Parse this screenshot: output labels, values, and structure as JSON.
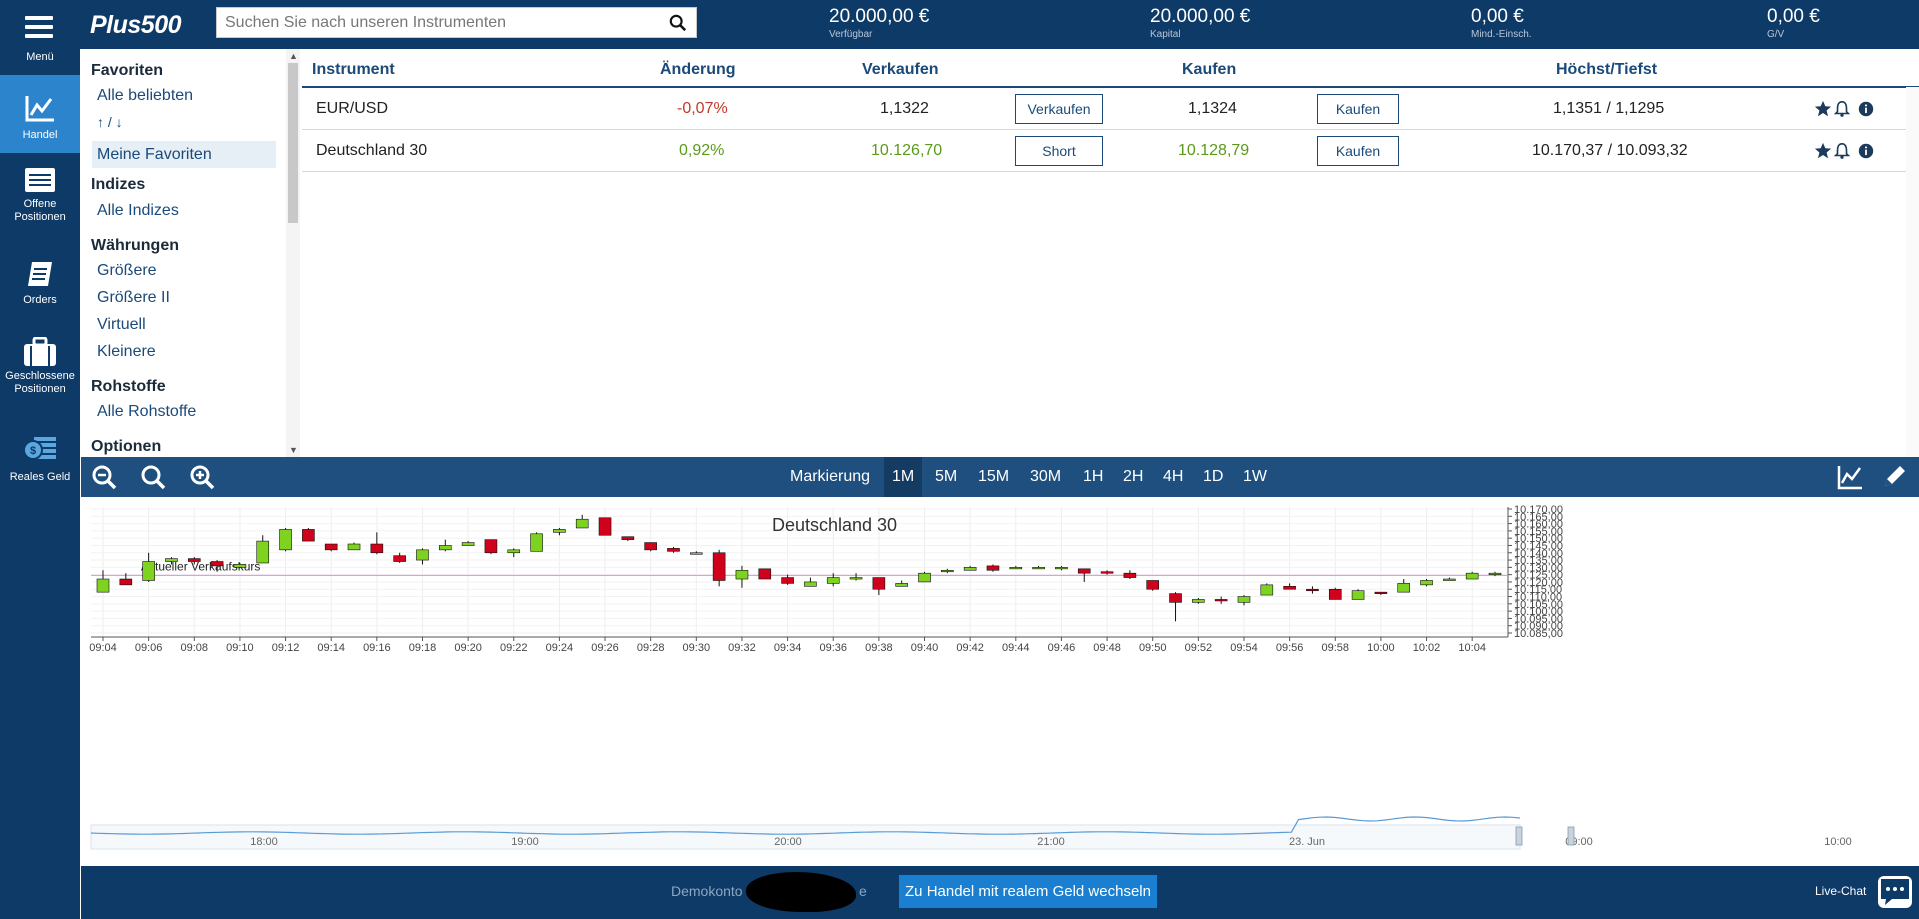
{
  "brand": {
    "logo": "Plus500"
  },
  "menu_label": "Menü",
  "search": {
    "placeholder": "Suchen Sie nach unseren Instrumenten"
  },
  "stats": [
    {
      "value": "20.000,00 €",
      "label": "Verfügbar"
    },
    {
      "value": "20.000,00 €",
      "label": "Kapital"
    },
    {
      "value": "0,00 €",
      "label": "Mind.-Einsch."
    },
    {
      "value": "0,00 €",
      "label": "G/V"
    }
  ],
  "nav": [
    {
      "label1": "Handel",
      "label2": "",
      "icon": "trade-chart-icon",
      "active": true
    },
    {
      "label1": "Offene",
      "label2": "Positionen",
      "icon": "open-positions-icon"
    },
    {
      "label1": "Orders",
      "label2": "",
      "icon": "orders-icon"
    },
    {
      "label1": "Geschlossene",
      "label2": "Positionen",
      "icon": "briefcase-icon"
    },
    {
      "label1": "Reales Geld",
      "label2": "",
      "icon": "money-icon"
    }
  ],
  "categories": {
    "favoriten": "Favoriten",
    "alle_beliebten": "Alle beliebten",
    "up_down": "↑ / ↓",
    "meine_favoriten": "Meine Favoriten",
    "indizes": "Indizes",
    "alle_indizes": "Alle Indizes",
    "waehrungen": "Währungen",
    "groessere": "Größere",
    "groessere2": "Größere II",
    "virtuell": "Virtuell",
    "kleinere": "Kleinere",
    "rohstoffe": "Rohstoffe",
    "alle_rohstoffe": "Alle Rohstoffe",
    "optionen": "Optionen"
  },
  "table": {
    "headers": {
      "instrument": "Instrument",
      "change": "Änderung",
      "sell": "Verkaufen",
      "buy": "Kaufen",
      "highlow": "Höchst/Tiefst"
    },
    "rows": [
      {
        "name": "EUR/USD",
        "change": "-0,07%",
        "sell": "1,1322",
        "sell_btn": "Verkaufen",
        "buy": "1,1324",
        "buy_btn": "Kaufen",
        "highlow": "1,1351 / 1,1295"
      },
      {
        "name": "Deutschland 30",
        "change": "0,92%",
        "sell": "10.126,70",
        "sell_btn": "Short",
        "buy": "10.128,79",
        "buy_btn": "Kaufen",
        "highlow": "10.170,37 / 10.093,32"
      }
    ]
  },
  "chart_toolbar": {
    "markierung": "Markierung",
    "timeframes": [
      "1M",
      "5M",
      "15M",
      "30M",
      "1H",
      "2H",
      "4H",
      "1D",
      "1W"
    ],
    "selected": "1M"
  },
  "chart_data": {
    "type": "candlestick",
    "title": "Deutschland 30",
    "price_line_label": "Aktueller Verkaufskurs",
    "price_line": 10124.5,
    "ylim": [
      10085,
      10170
    ],
    "yticks": [
      "10.085,00",
      "10.090,00",
      "10.095,00",
      "10.100,00",
      "10.105,00",
      "10.110,00",
      "10.115,00",
      "10.120,00",
      "10.125,00",
      "10.130,00",
      "10.135,00",
      "10.140,00",
      "10.145,00",
      "10.150,00",
      "10.155,00",
      "10.160,00",
      "10.165,00",
      "10.170,00"
    ],
    "xlabels": [
      "09:04",
      "09:06",
      "09:08",
      "09:10",
      "09:12",
      "09:14",
      "09:16",
      "09:18",
      "09:20",
      "09:22",
      "09:24",
      "09:26",
      "09:28",
      "09:30",
      "09:32",
      "09:34",
      "09:36",
      "09:38",
      "09:40",
      "09:42",
      "09:44",
      "09:46",
      "09:48",
      "09:50",
      "09:52",
      "09:54",
      "09:56",
      "09:58",
      "10:00",
      "10:02",
      "10:04"
    ],
    "candles": [
      [
        10113,
        10122,
        10128,
        10113
      ],
      [
        10122,
        10118,
        10126,
        10118
      ],
      [
        10121,
        10134,
        10140,
        10120
      ],
      [
        10134,
        10136,
        10137,
        10132
      ],
      [
        10136,
        10134,
        10137,
        10132
      ],
      [
        10134,
        10131,
        10135,
        10127
      ],
      [
        10130,
        10132,
        10133,
        10130
      ],
      [
        10133,
        10148,
        10152,
        10133
      ],
      [
        10142,
        10156,
        10157,
        10141
      ],
      [
        10156,
        10148,
        10157,
        10148
      ],
      [
        10146,
        10142,
        10146,
        10141
      ],
      [
        10142,
        10146,
        10147,
        10142
      ],
      [
        10146,
        10140,
        10154,
        10139
      ],
      [
        10138,
        10134,
        10140,
        10133
      ],
      [
        10135,
        10142,
        10143,
        10132
      ],
      [
        10142,
        10145,
        10149,
        10141
      ],
      [
        10145,
        10147,
        10148,
        10145
      ],
      [
        10149,
        10140,
        10149,
        10139
      ],
      [
        10140,
        10142,
        10143,
        10137
      ],
      [
        10141,
        10153,
        10154,
        10141
      ],
      [
        10154,
        10156,
        10157,
        10152
      ],
      [
        10157,
        10163,
        10166,
        10157
      ],
      [
        10164,
        10152,
        10164,
        10152
      ],
      [
        10151,
        10149,
        10151,
        10148
      ],
      [
        10147,
        10142,
        10147,
        10141
      ],
      [
        10143,
        10141,
        10144,
        10140
      ],
      [
        10140,
        10140,
        10141,
        10139
      ],
      [
        10140,
        10121,
        10142,
        10117
      ],
      [
        10122,
        10128,
        10131,
        10116
      ],
      [
        10129,
        10122,
        10129,
        10122
      ],
      [
        10123,
        10119,
        10125,
        10118
      ],
      [
        10117,
        10120,
        10123,
        10117
      ],
      [
        10119,
        10123,
        10126,
        10117
      ],
      [
        10123,
        10123,
        10126,
        10121
      ],
      [
        10123,
        10115,
        10123,
        10111
      ],
      [
        10117,
        10119,
        10121,
        10117
      ],
      [
        10120,
        10126,
        10127,
        10120
      ],
      [
        10127,
        10128,
        10129,
        10126
      ],
      [
        10128,
        10130,
        10131,
        10128
      ],
      [
        10131,
        10128,
        10132,
        10127
      ],
      [
        10129,
        10130,
        10131,
        10129
      ],
      [
        10130,
        10130,
        10131,
        10129
      ],
      [
        10130,
        10130,
        10131,
        10128
      ],
      [
        10129,
        10126,
        10129,
        10120
      ],
      [
        10127,
        10126,
        10128,
        10125
      ],
      [
        10126,
        10123,
        10128,
        10122
      ],
      [
        10121,
        10115,
        10121,
        10114
      ],
      [
        10112,
        10106,
        10113,
        10093
      ],
      [
        10106,
        10108,
        10109,
        10105
      ],
      [
        10108,
        10107,
        10110,
        10105
      ],
      [
        10106,
        10110,
        10111,
        10104
      ],
      [
        10111,
        10118,
        10119,
        10111
      ],
      [
        10117,
        10115,
        10119,
        10115
      ],
      [
        10115,
        10114,
        10117,
        10112
      ],
      [
        10115,
        10108,
        10116,
        10108
      ],
      [
        10108,
        10114,
        10115,
        10108
      ],
      [
        10113,
        10112,
        10113,
        10111
      ],
      [
        10113,
        10119,
        10122,
        10113
      ],
      [
        10118,
        10121,
        10122,
        10117
      ],
      [
        10121,
        10122,
        10123,
        10121
      ],
      [
        10122,
        10126,
        10127,
        10122
      ],
      [
        10125,
        10126,
        10127,
        10124
      ]
    ],
    "navigator_labels": [
      "18:00",
      "19:00",
      "20:00",
      "21:00",
      "23. Jun",
      "09:00",
      "10:00"
    ],
    "colors": {
      "up": "#7ed321",
      "down": "#d0021b",
      "price_line": "#ee82ee"
    }
  },
  "bottom": {
    "demo_prefix": "Demokonto f",
    "demo_suffix": "e",
    "real_money_button": "Zu Handel mit realem Geld wechseln",
    "live_chat": "Live-Chat"
  }
}
